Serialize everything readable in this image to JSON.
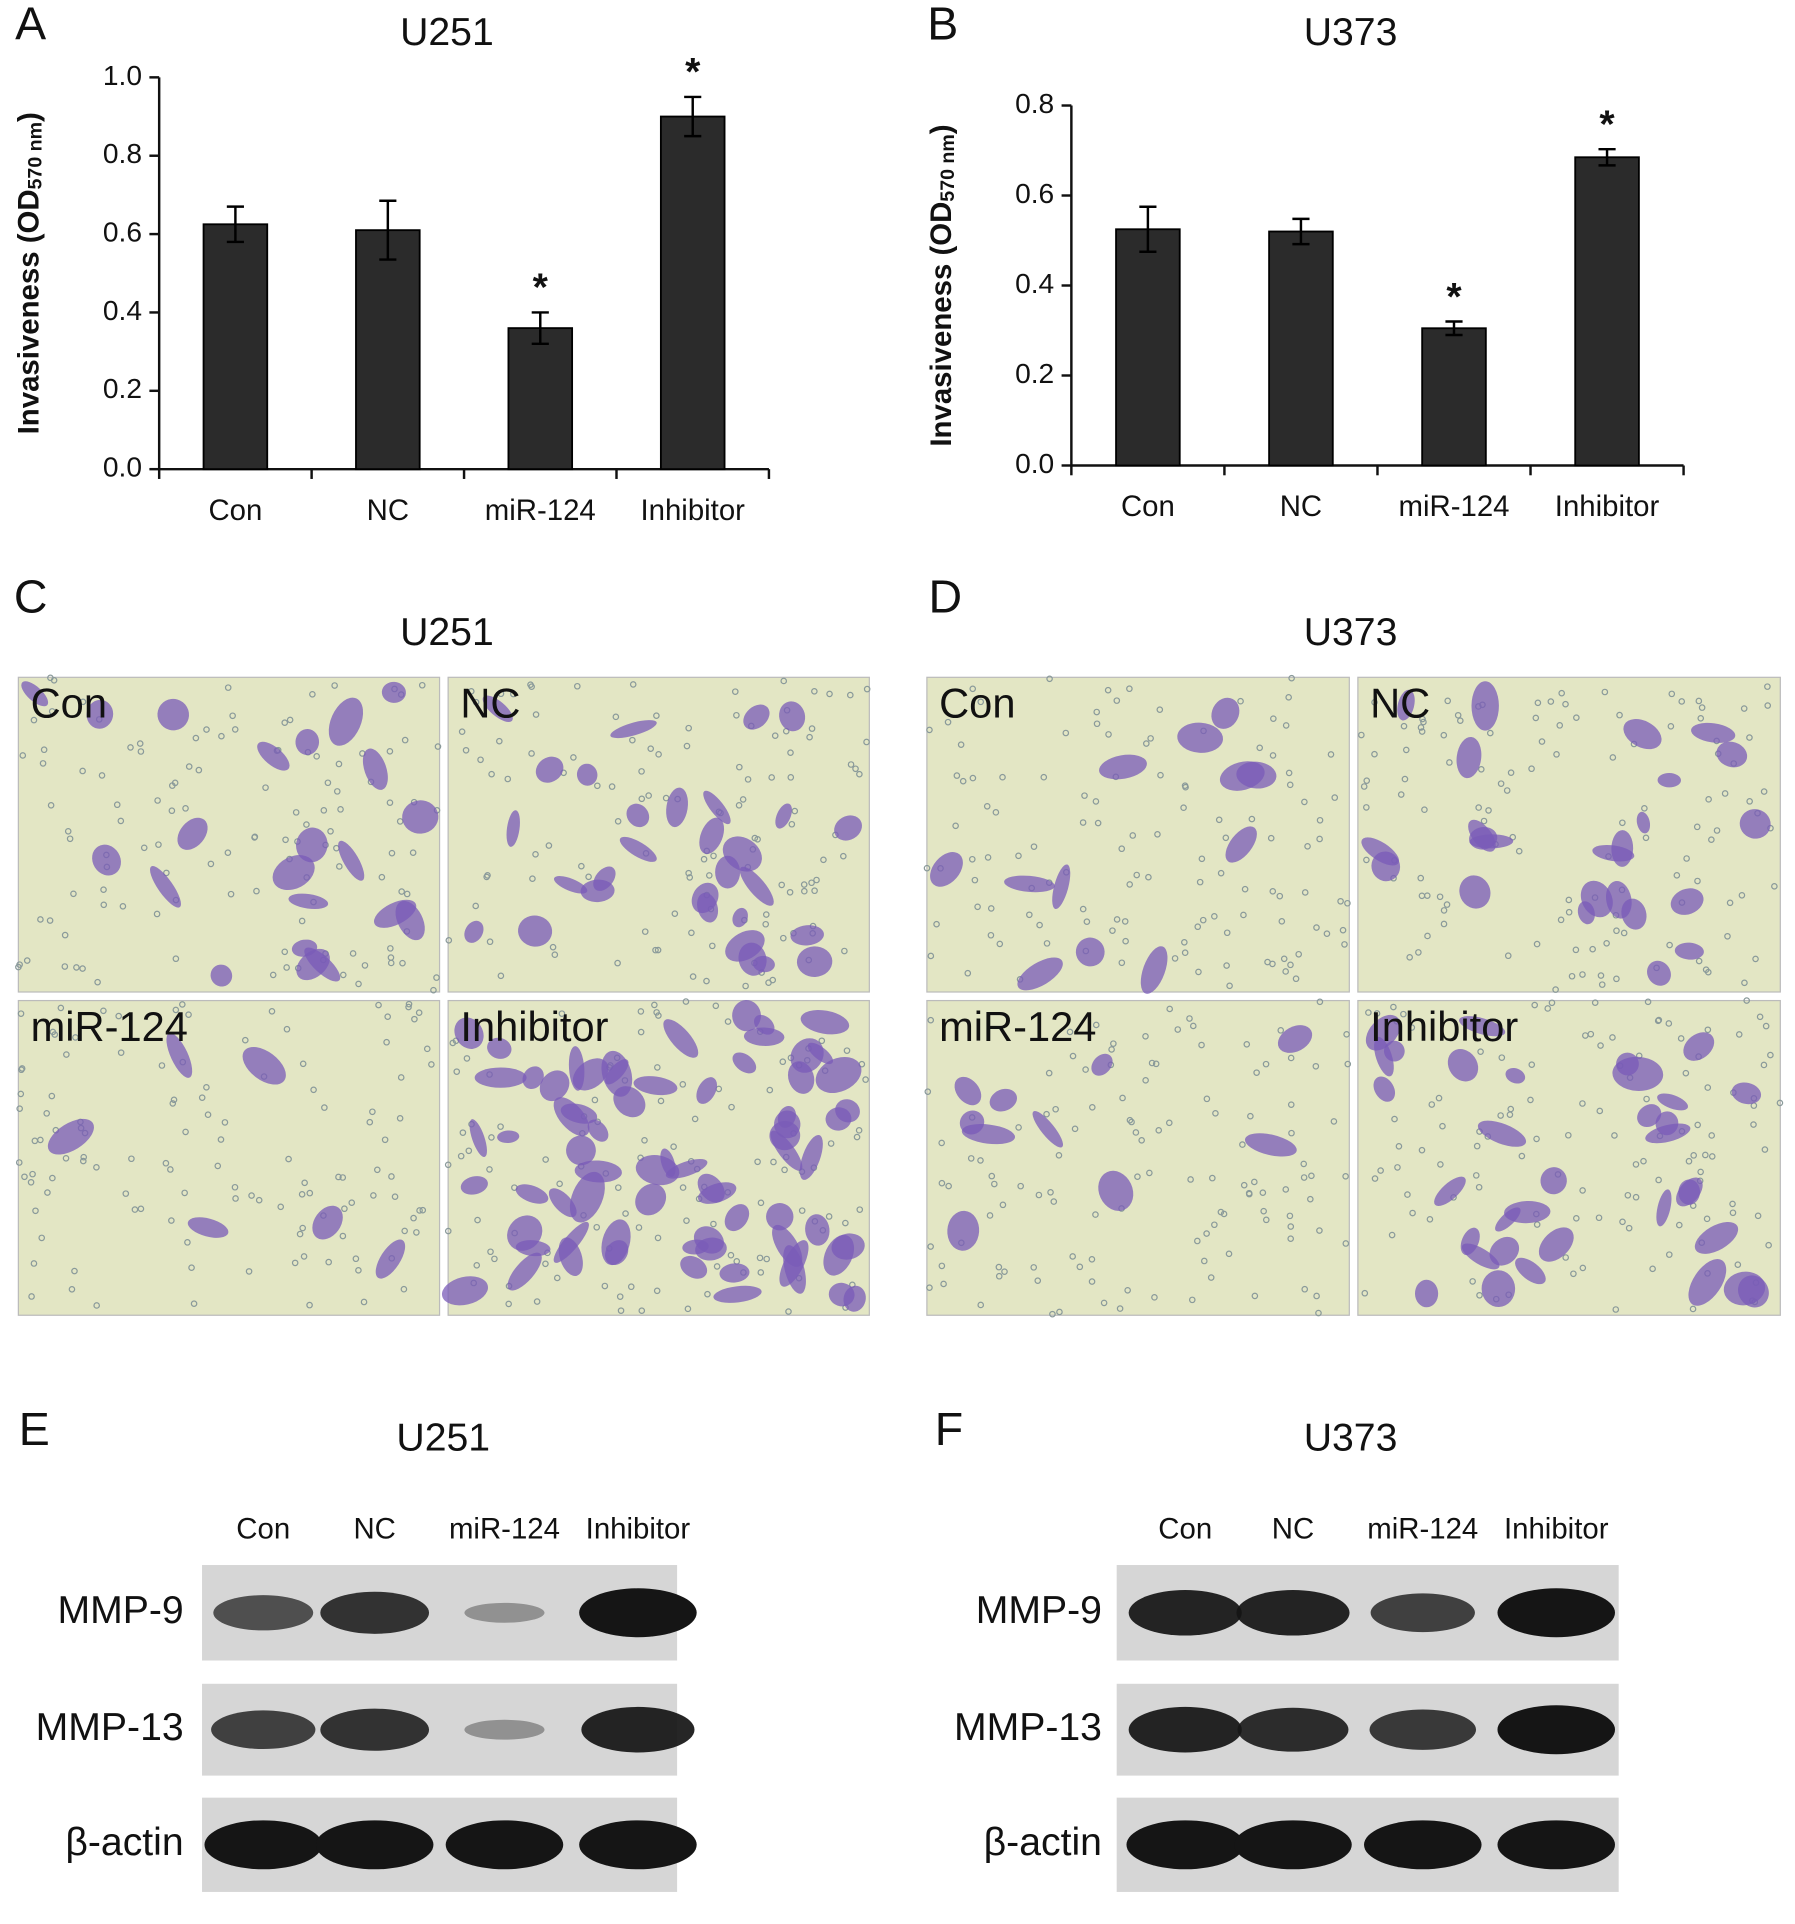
{
  "chart_data": [
    {
      "type": "bar",
      "panel_label": "A",
      "title": "U251",
      "y_label": [
        "Invasiveness (OD",
        "570 nm",
        ")"
      ],
      "categories": [
        "Con",
        "NC",
        "miR-124",
        "Inhibitor"
      ],
      "values": [
        0.625,
        0.61,
        0.36,
        0.9
      ],
      "errors": [
        0.045,
        0.075,
        0.04,
        0.05
      ],
      "annotations": [
        {
          "category": "miR-124",
          "text": "*"
        },
        {
          "category": "Inhibitor",
          "text": "*"
        }
      ],
      "color": "#2b2b2b",
      "ylim": [
        0,
        1.0
      ],
      "yticks": [
        {
          "value": 0,
          "label": "0.0"
        },
        0.2,
        0.4,
        0.6,
        0.8,
        {
          "value": 1.0,
          "label": "1.0"
        }
      ]
    },
    {
      "type": "bar",
      "panel_label": "B",
      "title": "U373",
      "y_label": [
        "Invasiveness (OD",
        "570 nm",
        ")"
      ],
      "categories": [
        "Con",
        "NC",
        "miR-124",
        "Inhibitor"
      ],
      "values": [
        0.525,
        0.52,
        0.305,
        0.685
      ],
      "errors": [
        0.05,
        0.028,
        0.015,
        0.018
      ],
      "annotations": [
        {
          "category": "miR-124",
          "text": "*"
        },
        {
          "category": "Inhibitor",
          "text": "*"
        }
      ],
      "color": "#2b2b2b",
      "ylim": [
        0,
        0.8
      ],
      "yticks": [
        {
          "value": 0,
          "label": "0.0"
        },
        0.2,
        0.4,
        0.6,
        0.8
      ]
    }
  ],
  "micrographs": [
    {
      "panel_label": "C",
      "title": "U251",
      "images": [
        "Con",
        "NC",
        "miR-124",
        "Inhibitor"
      ]
    },
    {
      "panel_label": "D",
      "title": "U373",
      "images": [
        "Con",
        "NC",
        "miR-124",
        "Inhibitor"
      ]
    }
  ],
  "blots": [
    {
      "panel_label": "E",
      "title": "U251",
      "lanes": [
        "Con",
        "NC",
        "miR-124",
        "Inhibitor"
      ],
      "rows": [
        "MMP-9",
        "MMP-13",
        "β-actin"
      ]
    },
    {
      "panel_label": "F",
      "title": "U373",
      "lanes": [
        "Con",
        "NC",
        "miR-124",
        "Inhibitor"
      ],
      "rows": [
        "MMP-9",
        "MMP-13",
        "β-actin"
      ]
    }
  ]
}
